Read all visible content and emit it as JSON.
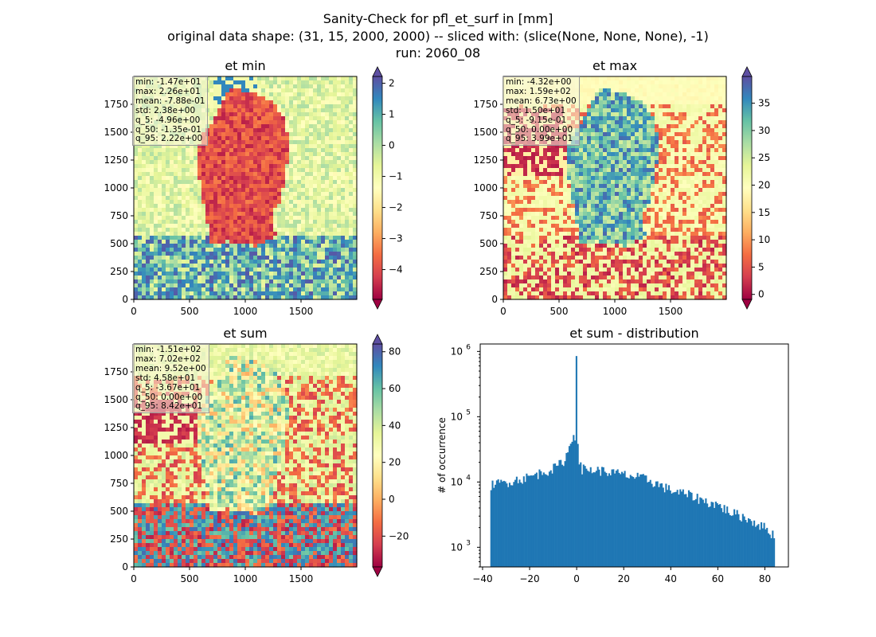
{
  "figure": {
    "title_line1": "Sanity-Check for pfl_et_surf in [mm]",
    "title_line2": "original data shape: (31, 15, 2000, 2000) -- sliced with: (slice(None, None, None), -1)",
    "title_line3": "run: 2060_08"
  },
  "chart_data": [
    {
      "type": "heatmap",
      "title": "et min",
      "xlabel": "",
      "ylabel": "",
      "xlim": [
        0,
        2000
      ],
      "ylim": [
        0,
        2000
      ],
      "xticks": [
        0,
        500,
        1000,
        1500
      ],
      "yticks": [
        0,
        250,
        500,
        750,
        1000,
        1250,
        1500,
        1750
      ],
      "colormap": "Spectral",
      "colorbar_range": [
        -4.96,
        2.22
      ],
      "colorbar_ticks": [
        "2",
        "1",
        "0",
        "−1",
        "−2",
        "−3",
        "−4"
      ],
      "colorbar_tick_values": [
        2,
        1,
        0,
        -1,
        -2,
        -3,
        -4
      ],
      "stats": [
        "min: -1.47e+01",
        "max: 2.26e+01",
        "mean: -7.88e-01",
        "std: 2.38e+00",
        "q_5: -4.96e+00",
        "q_50: -1.35e-01",
        "q_95: 2.22e+00"
      ]
    },
    {
      "type": "heatmap",
      "title": "et max",
      "xlabel": "",
      "ylabel": "",
      "xlim": [
        0,
        2000
      ],
      "ylim": [
        0,
        2000
      ],
      "xticks": [
        0,
        500,
        1000,
        1500
      ],
      "yticks": [
        0,
        250,
        500,
        750,
        1000,
        1250,
        1500,
        1750
      ],
      "colormap": "Spectral",
      "colorbar_range": [
        -0.915,
        39.9
      ],
      "colorbar_ticks": [
        "35",
        "30",
        "25",
        "20",
        "15",
        "10",
        "5",
        "0"
      ],
      "colorbar_tick_values": [
        35,
        30,
        25,
        20,
        15,
        10,
        5,
        0
      ],
      "stats": [
        "min: -4.32e+00",
        "max: 1.59e+02",
        "mean: 6.73e+00",
        "std: 1.50e+01",
        "q_5: -9.15e-01",
        "q_50: 0.00e+00",
        "q_95: 3.99e+01"
      ]
    },
    {
      "type": "heatmap",
      "title": "et sum",
      "xlabel": "",
      "ylabel": "",
      "xlim": [
        0,
        2000
      ],
      "ylim": [
        0,
        2000
      ],
      "xticks": [
        0,
        500,
        1000,
        1500
      ],
      "yticks": [
        0,
        250,
        500,
        750,
        1000,
        1250,
        1500,
        1750
      ],
      "colormap": "Spectral",
      "colorbar_range": [
        -36.7,
        84.2
      ],
      "colorbar_ticks": [
        "80",
        "60",
        "40",
        "20",
        "0",
        "−20"
      ],
      "colorbar_tick_values": [
        80,
        60,
        40,
        20,
        0,
        -20
      ],
      "stats": [
        "min: -1.51e+02",
        "max: 7.02e+02",
        "mean: 9.52e+00",
        "std: 4.58e+01",
        "q_5: -3.67e+01",
        "q_50: 0.00e+00",
        "q_95: 8.42e+01"
      ]
    },
    {
      "type": "bar",
      "title": "et sum - distribution",
      "xlabel": "",
      "ylabel": "# of occurrence",
      "yscale": "log",
      "xlim": [
        -41,
        90
      ],
      "ylim": [
        500,
        1300000
      ],
      "xticks": [
        -40,
        -20,
        0,
        20,
        40,
        60,
        80
      ],
      "xtick_labels": [
        "−40",
        "−20",
        "0",
        "20",
        "40",
        "60",
        "80"
      ],
      "ytick_exponents": [
        3,
        4,
        5,
        6
      ],
      "color": "#1f77b4",
      "x": [
        -36.7,
        -30,
        -20,
        -15,
        -10,
        -6,
        -4,
        -2,
        -1,
        -0.3,
        0,
        0.5,
        1,
        2,
        5,
        10,
        20,
        30,
        40,
        50,
        55,
        60,
        65,
        70,
        75,
        80,
        84.2
      ],
      "values": [
        9000,
        10000,
        12000,
        14000,
        16000,
        20000,
        27000,
        45000,
        60000,
        40000,
        850000,
        40000,
        20000,
        16000,
        15500,
        15000,
        13000,
        11000,
        7500,
        6000,
        5000,
        4500,
        3500,
        3000,
        2500,
        2000,
        1500
      ]
    }
  ]
}
